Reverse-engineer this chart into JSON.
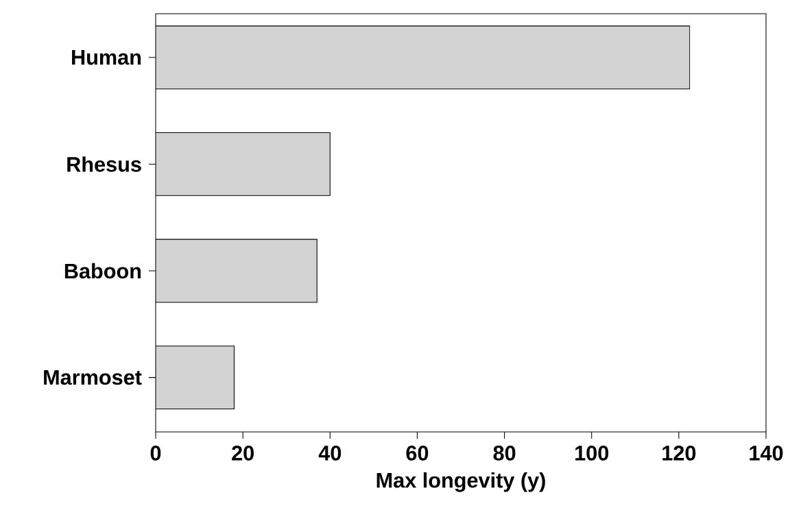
{
  "chart_data": {
    "type": "bar",
    "orientation": "horizontal",
    "xlabel": "Max longevity (y)",
    "categories": [
      "Human",
      "Rhesus",
      "Baboon",
      "Marmoset"
    ],
    "values": [
      122.5,
      40,
      37,
      18
    ],
    "color": "#d3d3d3",
    "xlim": [
      0,
      140
    ],
    "xticks": [
      0,
      20,
      40,
      60,
      80,
      100,
      120,
      140
    ]
  }
}
